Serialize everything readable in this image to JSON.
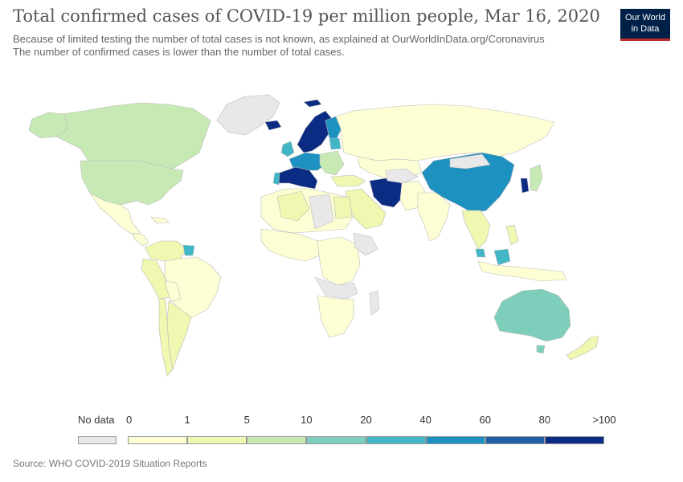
{
  "header": {
    "title": "Total confirmed cases of COVID-19 per million people, Mar 16, 2020",
    "subtitle_line1": "Because of limited testing the number of total cases is not known, as explained at OurWorldInData.org/Coronavirus",
    "subtitle_line2": "The number of confirmed cases is lower than the number of total cases."
  },
  "logo": {
    "line1": "Our World",
    "line2": "in Data",
    "bg_color": "#002147",
    "accent_color": "#be2d2d"
  },
  "legend": {
    "no_data": {
      "label": "No data",
      "color": "#e8e8e8"
    },
    "tick_labels": [
      "0",
      "1",
      "5",
      "10",
      "20",
      "40",
      "60",
      "80",
      ">100"
    ],
    "bins": [
      {
        "range": "0-1",
        "color": "#fefed4"
      },
      {
        "range": "1-5",
        "color": "#eff7b0"
      },
      {
        "range": "5-10",
        "color": "#c7e9b4"
      },
      {
        "range": "10-20",
        "color": "#7fcdbb"
      },
      {
        "range": "20-40",
        "color": "#41b6c4"
      },
      {
        "range": "40-60",
        "color": "#1d91c0"
      },
      {
        "range": "60-80",
        "color": "#225ea8"
      },
      {
        "range": ">80",
        "color": "#0c2c84"
      }
    ]
  },
  "source": "Source: WHO COVID-2019 Situation Reports"
}
